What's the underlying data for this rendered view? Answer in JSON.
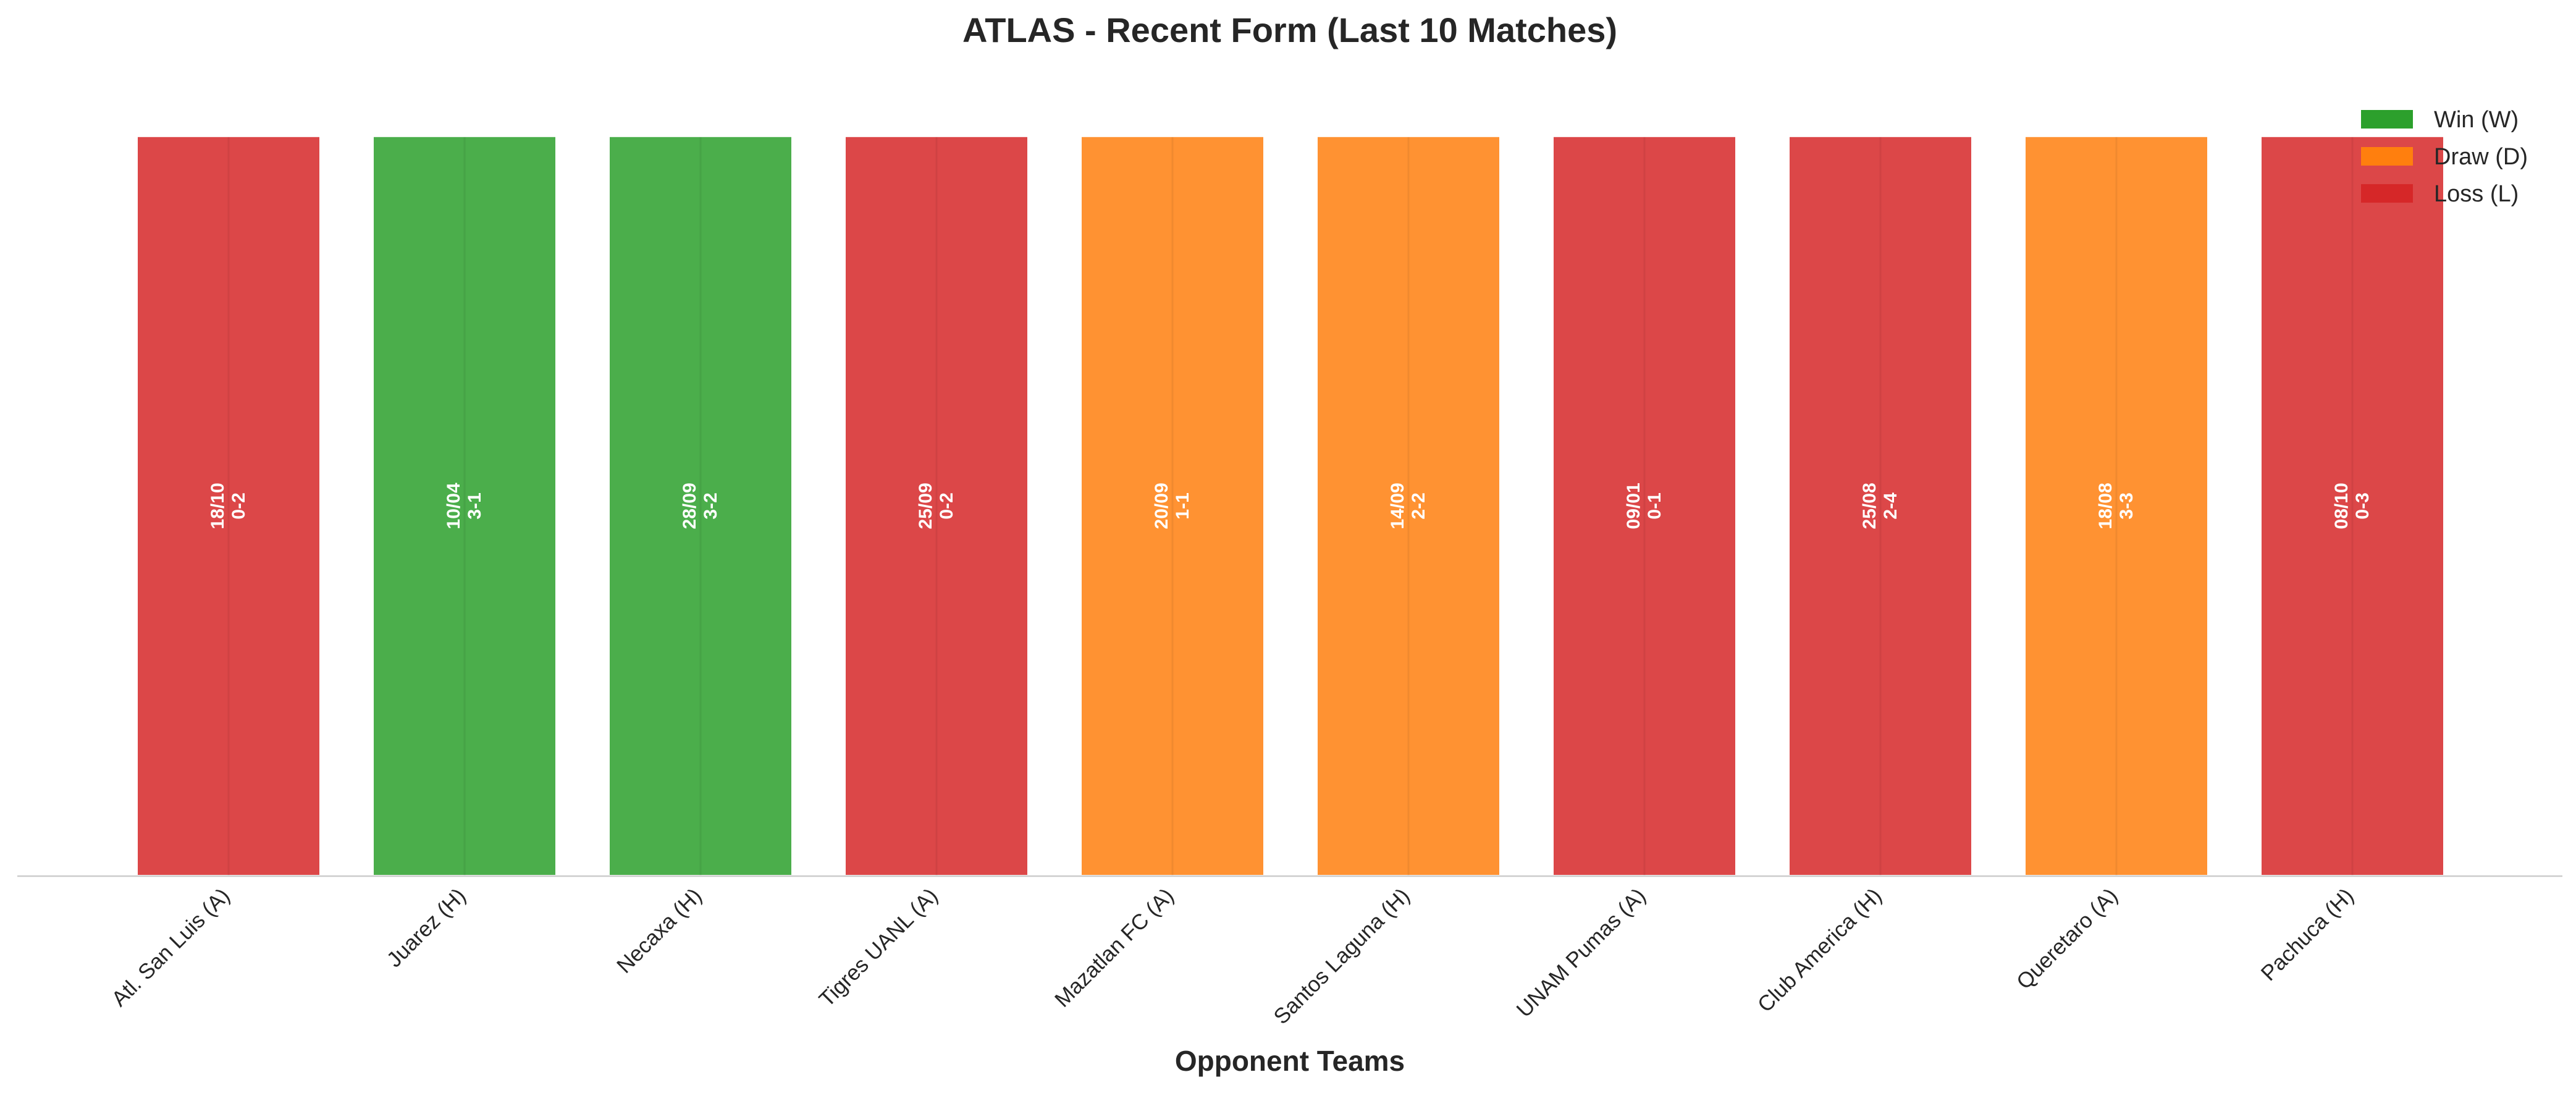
{
  "chart_data": {
    "type": "bar",
    "title": "ATLAS - Recent Form (Last 10 Matches)",
    "xlabel": "Opponent Teams",
    "ylabel": "",
    "grid": false,
    "legend_position": "top-right",
    "categories": [
      "Atl. San Luis (A)",
      "Juarez (H)",
      "Necaxa (H)",
      "Tigres UANL (A)",
      "Mazatlan FC (A)",
      "Santos Laguna (H)",
      "UNAM Pumas (A)",
      "Club America (H)",
      "Queretaro (A)",
      "Pachuca (H)"
    ],
    "values": [
      1,
      1,
      1,
      1,
      1,
      1,
      1,
      1,
      1,
      1
    ],
    "ylim": [
      0,
      1.1
    ],
    "results": [
      "L",
      "W",
      "W",
      "L",
      "D",
      "D",
      "L",
      "L",
      "D",
      "L"
    ],
    "dates": [
      "18/10",
      "10/04",
      "28/09",
      "25/09",
      "20/09",
      "14/09",
      "09/01",
      "25/08",
      "18/08",
      "08/10"
    ],
    "scores": [
      "0-2",
      "3-1",
      "3-2",
      "0-2",
      "1-1",
      "2-2",
      "0-1",
      "2-4",
      "3-3",
      "0-3"
    ],
    "legend": [
      {
        "key": "W",
        "label": "Win (W)",
        "color": "#2ca02c"
      },
      {
        "key": "D",
        "label": "Draw (D)",
        "color": "#ff7f0e"
      },
      {
        "key": "L",
        "label": "Loss (L)",
        "color": "#d62728"
      }
    ]
  }
}
